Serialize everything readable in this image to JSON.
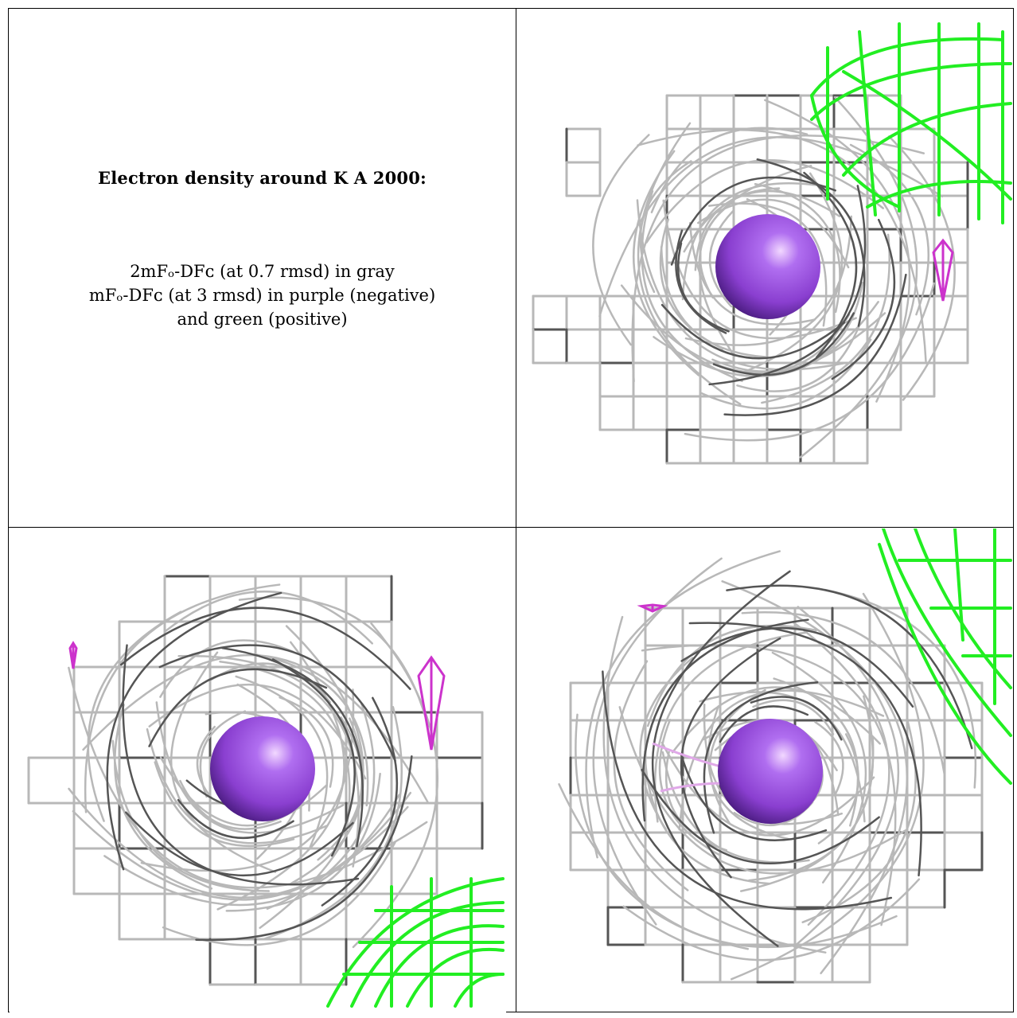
{
  "caption": {
    "title": "Electron density around K A 2000:",
    "lines": [
      "2mFₒ-DFᴄ (at 0.7 rmsd) in gray",
      "mFₒ-DFᴄ (at 3 rmsd) in purple (negative)",
      "and green (positive)"
    ]
  },
  "colors": {
    "mesh_gray": "#b8b8b8",
    "mesh_dark": "#555555",
    "positive_green": "#22ee22",
    "negative_purple": "#cc33cc",
    "ion_sphere": "#8a3fd0"
  },
  "panels": [
    {
      "name": "view-top-right"
    },
    {
      "name": "view-bottom-left"
    },
    {
      "name": "view-bottom-right"
    }
  ]
}
